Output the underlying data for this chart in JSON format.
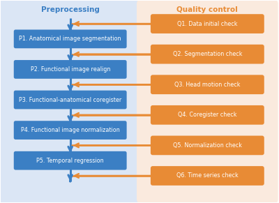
{
  "fig_width": 4.0,
  "fig_height": 2.91,
  "dpi": 100,
  "bg_color": "#ffffff",
  "left_panel_color": "#dbe6f5",
  "right_panel_color": "#faeade",
  "p_box_color": "#3b7fc4",
  "q_box_color": "#e88b35",
  "p_text_color": "#ffffff",
  "q_text_color": "#ffffff",
  "title_left_color": "#3b7fc4",
  "title_right_color": "#e88b35",
  "arrow_color": "#e88b35",
  "down_arrow_color": "#3b7fc4",
  "left_title": "Preprocessing",
  "right_title": "Quality control",
  "p_labels": [
    "P1. Anatomical image segmentation",
    "P2. Functional image realign",
    "P3. Functional-anatomical coregister",
    "P4. Functional image normalization",
    "P5. Temporal regression"
  ],
  "q_labels": [
    "Q1. Data initial check",
    "Q2. Segmentation check",
    "Q3. Head motion check",
    "Q4. Coregister check",
    "Q5. Normalization check",
    "Q6. Time series check"
  ],
  "font_size_title": 7.5,
  "font_size_box": 5.8
}
